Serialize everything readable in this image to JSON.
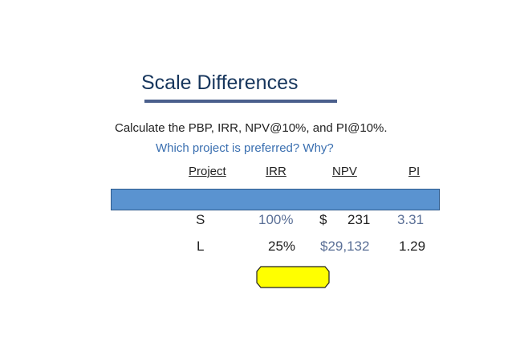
{
  "slide": {
    "title": "Scale Differences",
    "prompt": "Calculate the PBP, IRR, NPV@10%, and PI@10%.",
    "question": "Which project is preferred?  Why?",
    "headers": {
      "project": "Project",
      "irr": "IRR",
      "npv": "NPV",
      "pi": "PI"
    },
    "rows": [
      {
        "project": "S",
        "irr": "100%",
        "npv_symbol": "$",
        "npv": "231",
        "pi": "3.31"
      },
      {
        "project": "L",
        "irr": "25%",
        "npv": "$29,132",
        "pi": "1.29"
      }
    ],
    "colors": {
      "title": "#17365d",
      "question": "#3a6fb0",
      "band": "#5a93d0",
      "highlight": "#ffff00"
    }
  }
}
